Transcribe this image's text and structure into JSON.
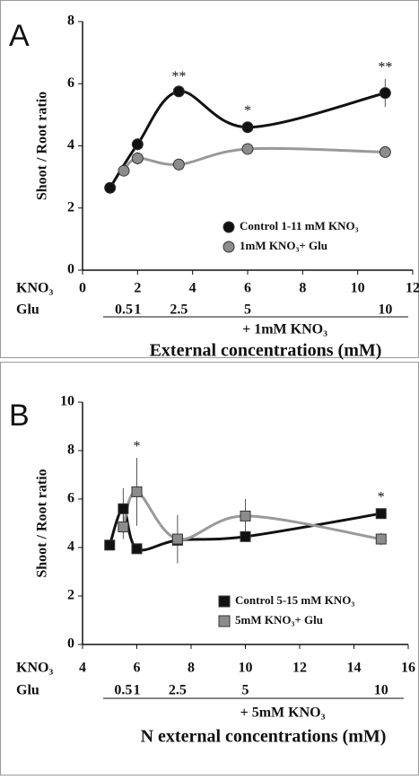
{
  "chart_data": [
    {
      "type": "line",
      "panel": "A",
      "ylabel": "Shoot / Root ratio",
      "xlabel": "External concentrations (mM)",
      "row1_label": "KNO₃",
      "row2_label": "Glu",
      "row2_note": "+ 1mM  KNO₃",
      "xlim": [
        0,
        12
      ],
      "xticks": [
        0,
        2,
        4,
        6,
        8,
        10,
        12
      ],
      "ylim": [
        0,
        8
      ],
      "yticks": [
        0,
        2,
        4,
        6,
        8
      ],
      "glu_ticks": [
        {
          "value": 1.5,
          "label": "0.5"
        },
        {
          "value": 2,
          "label": "1"
        },
        {
          "value": 3.5,
          "label": "2.5"
        },
        {
          "value": 6,
          "label": "5"
        },
        {
          "value": 11,
          "label": "10"
        }
      ],
      "legend": "lower right",
      "marker": "circle",
      "series": [
        {
          "name": "Control 1-11 mM KNO₃",
          "color": "#111111",
          "x": [
            1,
            2,
            3.5,
            6,
            11
          ],
          "values": [
            2.65,
            4.05,
            5.75,
            4.6,
            5.7
          ],
          "errors": [
            0.05,
            0.2,
            0.1,
            0.15,
            0.45
          ]
        },
        {
          "name": "1mM KNO₃+ Glu",
          "color": "#8c8c8c",
          "x": [
            1.5,
            2,
            3.5,
            6,
            11
          ],
          "values": [
            3.2,
            3.6,
            3.4,
            3.9,
            3.8
          ],
          "errors": [
            0.05,
            0.2,
            0.15,
            0.1,
            0.05
          ]
        }
      ],
      "annotations": [
        {
          "text": "**",
          "x": 3.5
        },
        {
          "text": "*",
          "x": 6
        },
        {
          "text": "**",
          "x": 11
        }
      ]
    },
    {
      "type": "line",
      "panel": "B",
      "ylabel": "Shoot / Root ratio",
      "xlabel": "N external concentrations (mM)",
      "row1_label": "KNO₃",
      "row2_label": "Glu",
      "row2_note": "+ 5mM  KNO₃",
      "xlim": [
        4,
        16
      ],
      "xticks": [
        4,
        6,
        8,
        10,
        12,
        14,
        16
      ],
      "ylim": [
        0,
        10
      ],
      "yticks": [
        0,
        2,
        4,
        6,
        8,
        10
      ],
      "glu_ticks": [
        {
          "value": 5.5,
          "label": "0.5"
        },
        {
          "value": 6,
          "label": "1"
        },
        {
          "value": 7.5,
          "label": "2.5"
        },
        {
          "value": 10,
          "label": "5"
        },
        {
          "value": 15,
          "label": "10"
        }
      ],
      "legend": "lower right",
      "marker": "square",
      "series": [
        {
          "name": "Control 5-15 mM KNO₃",
          "color": "#111111",
          "x": [
            5,
            5.5,
            6,
            7.5,
            10,
            15
          ],
          "values": [
            4.1,
            5.6,
            3.95,
            4.3,
            4.45,
            5.4
          ],
          "errors": [
            0.1,
            0.85,
            0.1,
            0.1,
            0.1,
            0.2
          ]
        },
        {
          "name": "5mM KNO₃+ Glu",
          "color": "#8c8c8c",
          "x": [
            5.5,
            6,
            7.5,
            10,
            15
          ],
          "values": [
            4.85,
            6.3,
            4.35,
            5.3,
            4.35
          ],
          "errors": [
            0.5,
            1.4,
            1.0,
            0.7,
            0.25
          ]
        }
      ],
      "annotations": [
        {
          "text": "*",
          "x": 6
        },
        {
          "text": "*",
          "x": 15
        }
      ]
    }
  ]
}
